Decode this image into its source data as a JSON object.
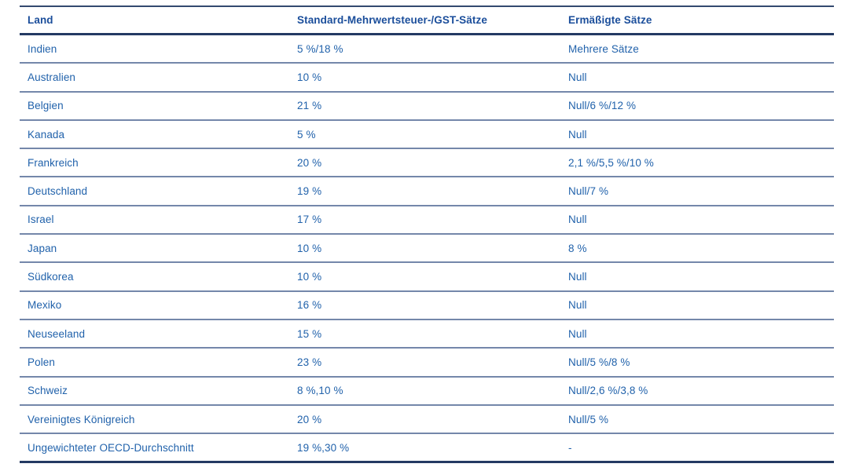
{
  "colors": {
    "header_text": "#1b4e9b",
    "body_text": "#2162ab",
    "thick_border": "#243a63",
    "thin_border": "#7487aa",
    "background": "#ffffff"
  },
  "table": {
    "columns": {
      "country": "Land",
      "standard": "Standard-Mehrwertsteuer-/GST-Sätze",
      "reduced": "Ermäßigte Sätze"
    },
    "rows": [
      {
        "country": "Indien",
        "standard": "5 %/18 %",
        "reduced": "Mehrere Sätze"
      },
      {
        "country": "Australien",
        "standard": "10 %",
        "reduced": "Null"
      },
      {
        "country": "Belgien",
        "standard": "21 %",
        "reduced": "Null/6 %/12 %"
      },
      {
        "country": "Kanada",
        "standard": "5 %",
        "reduced": "Null"
      },
      {
        "country": "Frankreich",
        "standard": "20 %",
        "reduced": "2,1 %/5,5 %/10 %"
      },
      {
        "country": "Deutschland",
        "standard": "19 %",
        "reduced": "Null/7 %"
      },
      {
        "country": "Israel",
        "standard": "17 %",
        "reduced": "Null"
      },
      {
        "country": "Japan",
        "standard": "10 %",
        "reduced": "8 %"
      },
      {
        "country": "Südkorea",
        "standard": "10 %",
        "reduced": "Null"
      },
      {
        "country": "Mexiko",
        "standard": "16 %",
        "reduced": "Null"
      },
      {
        "country": "Neuseeland",
        "standard": "15 %",
        "reduced": "Null"
      },
      {
        "country": "Polen",
        "standard": "23 %",
        "reduced": "Null/5 %/8 %"
      },
      {
        "country": "Schweiz",
        "standard": "8 %,10 %",
        "reduced": "Null/2,6 %/3,8 %"
      },
      {
        "country": "Vereinigtes Königreich",
        "standard": "20 %",
        "reduced": "Null/5 %"
      },
      {
        "country": "Ungewichteter OECD-Durchschnitt",
        "standard": "19 %,30 %",
        "reduced": "-"
      }
    ]
  }
}
